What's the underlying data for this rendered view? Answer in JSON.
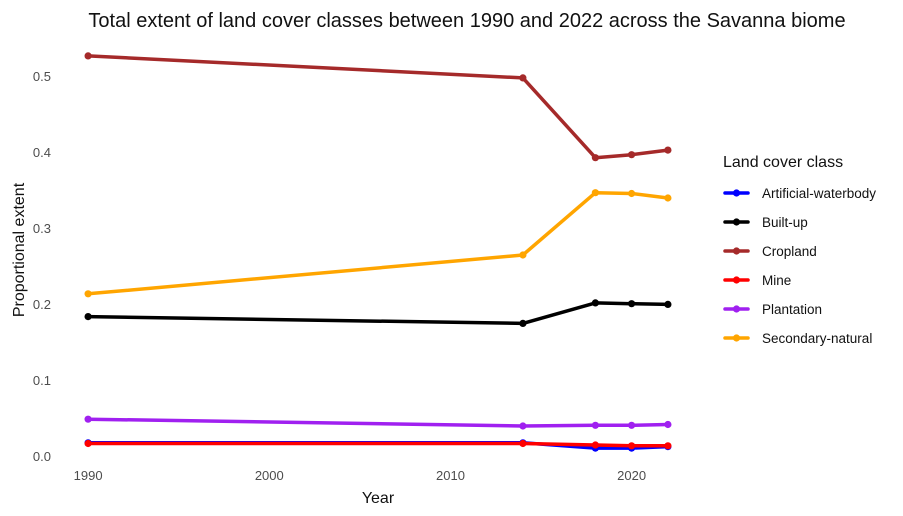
{
  "chart_data": {
    "type": "line",
    "title": "Total extent of land cover classes between 1990 and 2022 across the Savanna biome",
    "xlabel": "Year",
    "ylabel": "Proportional extent",
    "x": [
      1990,
      2014,
      2018,
      2020,
      2022
    ],
    "xlim": [
      1989,
      2023
    ],
    "ylim": [
      -0.006,
      0.54
    ],
    "x_ticks": [
      "1990",
      "2000",
      "2010",
      "2020"
    ],
    "y_ticks": [
      "0.0",
      "0.1",
      "0.2",
      "0.3",
      "0.4",
      "0.5"
    ],
    "grid": false,
    "legend": {
      "title": "Land cover class",
      "position": "right"
    },
    "series": [
      {
        "name": "Artificial-waterbody",
        "color": "#0000ff",
        "values": [
          0.018,
          0.018,
          0.011,
          0.011,
          0.013
        ]
      },
      {
        "name": "Built-up",
        "color": "#000000",
        "values": [
          0.184,
          0.175,
          0.202,
          0.201,
          0.2
        ]
      },
      {
        "name": "Cropland",
        "color": "#a52a2a",
        "values": [
          0.527,
          0.498,
          0.393,
          0.397,
          0.403
        ]
      },
      {
        "name": "Mine",
        "color": "#ff0000",
        "values": [
          0.017,
          0.017,
          0.015,
          0.014,
          0.014
        ]
      },
      {
        "name": "Plantation",
        "color": "#a020f0",
        "values": [
          0.049,
          0.04,
          0.041,
          0.041,
          0.042
        ]
      },
      {
        "name": "Secondary-natural",
        "color": "#ffa500",
        "values": [
          0.214,
          0.265,
          0.347,
          0.346,
          0.34
        ]
      }
    ]
  }
}
